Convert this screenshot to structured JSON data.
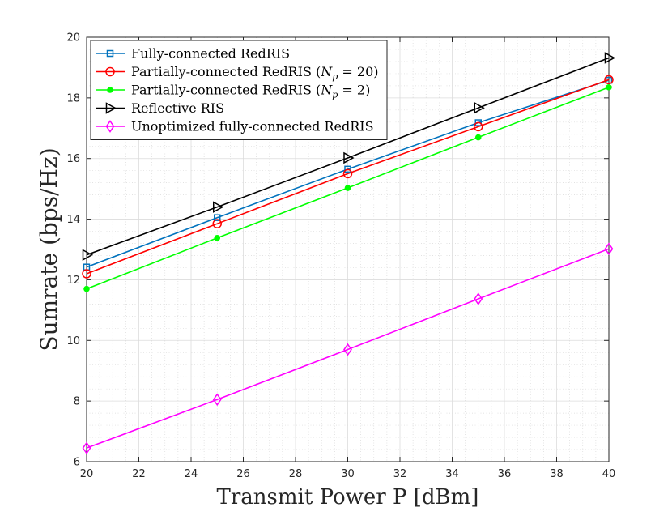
{
  "chart_data": {
    "type": "line",
    "xlabel": "Transmit Power P [dBm]",
    "ylabel": "Sumrate (bps/Hz)",
    "xlim": [
      20,
      40
    ],
    "ylim": [
      6,
      20
    ],
    "xticks": [
      20,
      22,
      24,
      26,
      28,
      30,
      32,
      34,
      36,
      38,
      40
    ],
    "yticks": [
      6,
      8,
      10,
      12,
      14,
      16,
      18,
      20
    ],
    "grid": true,
    "minor_grid": true,
    "legend_position": "top-left",
    "x": [
      20,
      25,
      30,
      35,
      40
    ],
    "series": [
      {
        "name": "Fully-connected RedRIS",
        "values": [
          12.42,
          14.05,
          15.65,
          17.18,
          18.58
        ],
        "color": "#0072BD",
        "marker": "square"
      },
      {
        "name": "Partially-connected RedRIS (N_p = 20)",
        "values": [
          12.2,
          13.85,
          15.5,
          17.05,
          18.6
        ],
        "color": "#FF0000",
        "marker": "circle"
      },
      {
        "name": "Partially-connected RedRIS (N_p = 2)",
        "values": [
          11.7,
          13.38,
          15.03,
          16.7,
          18.35
        ],
        "color": "#00FF00",
        "marker": "dot"
      },
      {
        "name": "Reflective RIS",
        "values": [
          12.82,
          14.4,
          16.02,
          17.67,
          19.32
        ],
        "color": "#000000",
        "marker": "triangle-right"
      },
      {
        "name": "Unoptimized fully-connected RedRIS",
        "values": [
          6.45,
          8.05,
          9.7,
          11.37,
          13.02
        ],
        "color": "#FF00FF",
        "marker": "diamond"
      }
    ]
  }
}
